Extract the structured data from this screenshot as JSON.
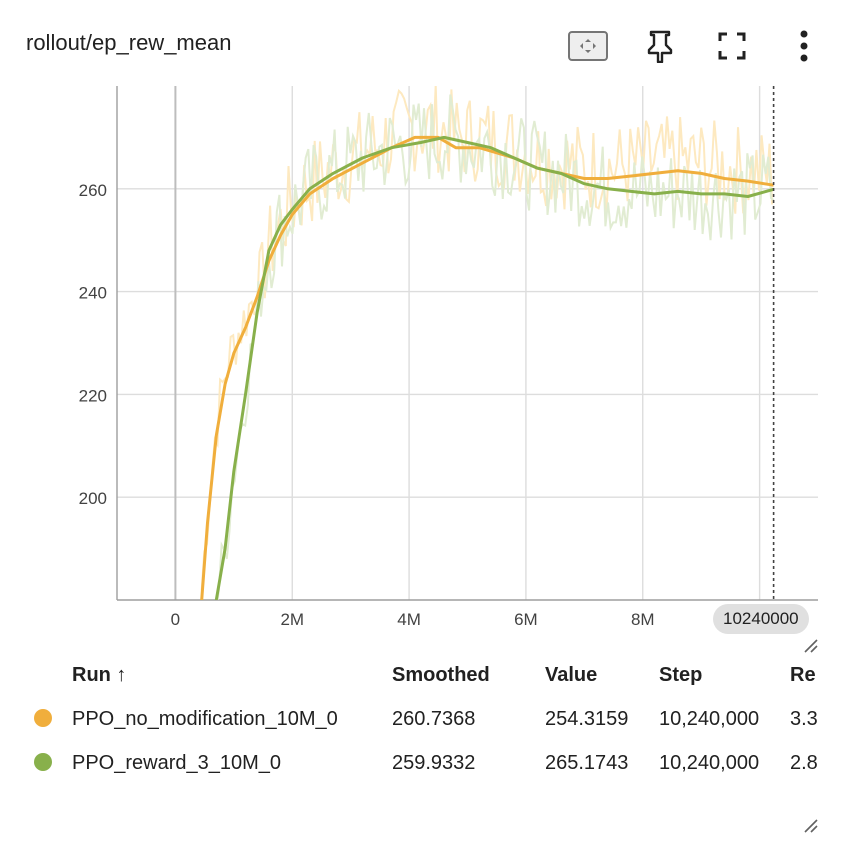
{
  "title": "rollout/ep_rew_mean",
  "toolbar": {
    "fit_icon": "fit-domain-icon",
    "pin_icon": "pin-icon",
    "fullscreen_icon": "fullscreen-icon",
    "more_icon": "more-vert-icon"
  },
  "x_badge": "10240000",
  "colors": {
    "orange": "#f0ae3c",
    "green": "#88b04b",
    "orange_light": "#fde9c0",
    "green_light": "#e1ecd2",
    "grid": "#dddddd"
  },
  "chart_data": {
    "type": "line",
    "xlim": [
      -1000000,
      11000000
    ],
    "ylim": [
      180,
      280
    ],
    "x_ticks": [
      0,
      2000000,
      4000000,
      6000000,
      8000000
    ],
    "x_tick_labels": [
      "0",
      "2M",
      "4M",
      "6M",
      "8M"
    ],
    "y_ticks": [
      200,
      220,
      240,
      260
    ],
    "y_tick_labels": [
      "200",
      "220",
      "240",
      "260"
    ],
    "cursor_x": 10240000,
    "series": [
      {
        "name": "PPO_no_modification_10M_0",
        "color": "#f0ae3c",
        "smoothed": [
          [
            450000,
            180
          ],
          [
            550000,
            195
          ],
          [
            700000,
            212
          ],
          [
            850000,
            222
          ],
          [
            1000000,
            228
          ],
          [
            1200000,
            233
          ],
          [
            1400000,
            239
          ],
          [
            1600000,
            246
          ],
          [
            1800000,
            251
          ],
          [
            2000000,
            255
          ],
          [
            2300000,
            259
          ],
          [
            2700000,
            262
          ],
          [
            3200000,
            265
          ],
          [
            3700000,
            268
          ],
          [
            4100000,
            270
          ],
          [
            4500000,
            270
          ],
          [
            4800000,
            268
          ],
          [
            5200000,
            268
          ],
          [
            5500000,
            267
          ],
          [
            5800000,
            266
          ],
          [
            6200000,
            264
          ],
          [
            6600000,
            263
          ],
          [
            7000000,
            262
          ],
          [
            7400000,
            262
          ],
          [
            7800000,
            262.5
          ],
          [
            8200000,
            263
          ],
          [
            8600000,
            263.5
          ],
          [
            9000000,
            263
          ],
          [
            9400000,
            262
          ],
          [
            9800000,
            261.5
          ],
          [
            10240000,
            260.7
          ]
        ]
      },
      {
        "name": "PPO_reward_3_10M_0",
        "color": "#88b04b",
        "smoothed": [
          [
            700000,
            180
          ],
          [
            850000,
            190
          ],
          [
            1000000,
            205
          ],
          [
            1200000,
            220
          ],
          [
            1400000,
            236
          ],
          [
            1600000,
            248
          ],
          [
            1800000,
            253
          ],
          [
            2000000,
            256
          ],
          [
            2300000,
            260
          ],
          [
            2700000,
            263
          ],
          [
            3200000,
            266
          ],
          [
            3700000,
            268
          ],
          [
            4200000,
            269
          ],
          [
            4600000,
            270
          ],
          [
            5000000,
            269
          ],
          [
            5400000,
            268
          ],
          [
            5800000,
            266
          ],
          [
            6200000,
            264
          ],
          [
            6600000,
            263
          ],
          [
            7000000,
            261
          ],
          [
            7400000,
            260
          ],
          [
            7800000,
            259.5
          ],
          [
            8200000,
            259
          ],
          [
            8600000,
            259.5
          ],
          [
            9000000,
            259
          ],
          [
            9400000,
            259
          ],
          [
            9800000,
            258.5
          ],
          [
            10240000,
            259.9
          ]
        ]
      }
    ]
  },
  "table": {
    "headers": {
      "run": "Run ↑",
      "smoothed": "Smoothed",
      "value": "Value",
      "step": "Step",
      "rel": "Re"
    },
    "rows": [
      {
        "run": "PPO_no_modification_10M_0",
        "smoothed": "260.7368",
        "value": "254.3159",
        "step": "10,240,000",
        "rel": "3.3",
        "color": "#f0ae3c"
      },
      {
        "run": "PPO_reward_3_10M_0",
        "smoothed": "259.9332",
        "value": "265.1743",
        "step": "10,240,000",
        "rel": "2.8",
        "color": "#88b04b"
      }
    ]
  }
}
